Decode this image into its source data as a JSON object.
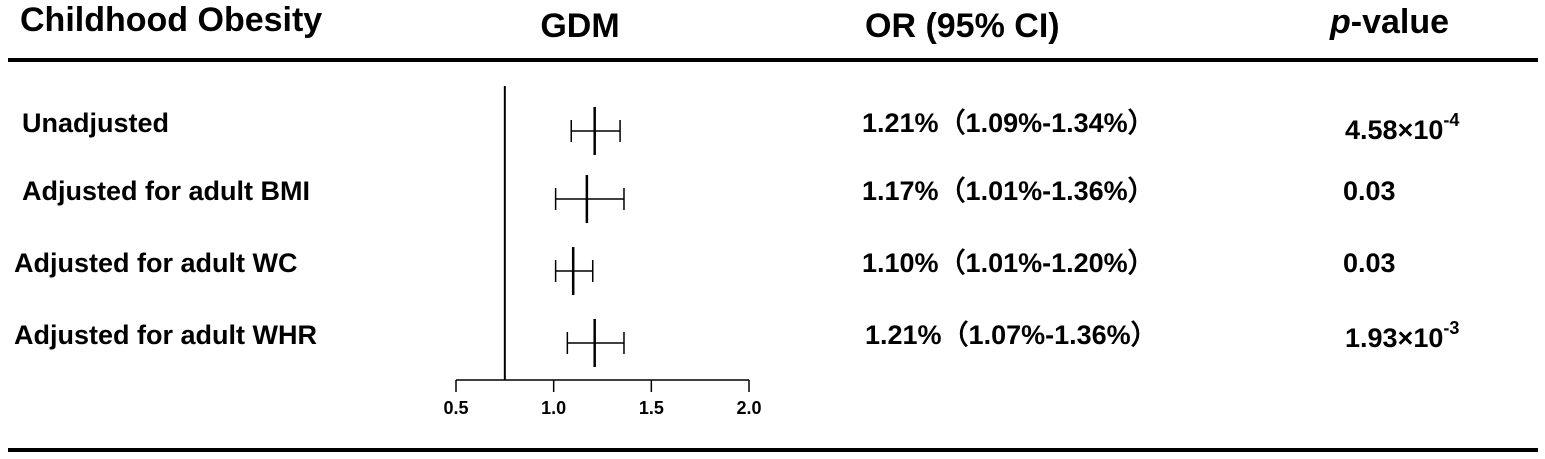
{
  "chart_data": {
    "type": "forest",
    "headers": {
      "label": "Childhood Obesity",
      "plot": "GDM",
      "estimate": "OR (95% CI)",
      "p_value": {
        "italic": "p",
        "rest": "-value"
      }
    },
    "categories": [
      "Unadjusted",
      "Adjusted for adult BMI",
      "Adjusted for adult WC",
      "Adjusted for adult WHR"
    ],
    "values": [
      1.21,
      1.17,
      1.1,
      1.21
    ],
    "lower": [
      1.09,
      1.01,
      1.01,
      1.07
    ],
    "upper": [
      1.34,
      1.36,
      1.2,
      1.36
    ],
    "value_labels": [
      "1.21%（1.09%-1.34%）",
      "1.17%（1.01%-1.36%）",
      "1.10%（1.01%-1.20%）",
      "1.21%（1.07%-1.36%）"
    ],
    "p_values": [
      {
        "mantissa": "4.58×10",
        "exponent": "-4"
      },
      "0.03",
      "0.03",
      {
        "mantissa": "1.93×10",
        "exponent": "-3"
      }
    ],
    "reference_line": 0.75,
    "xlim": [
      0.5,
      2.0
    ],
    "xticks": [
      0.5,
      {
        "value": 1.0,
        "label": "1.0"
      },
      1.5,
      {
        "value": 2.0,
        "label": "2.0"
      }
    ],
    "color": "#000000"
  }
}
